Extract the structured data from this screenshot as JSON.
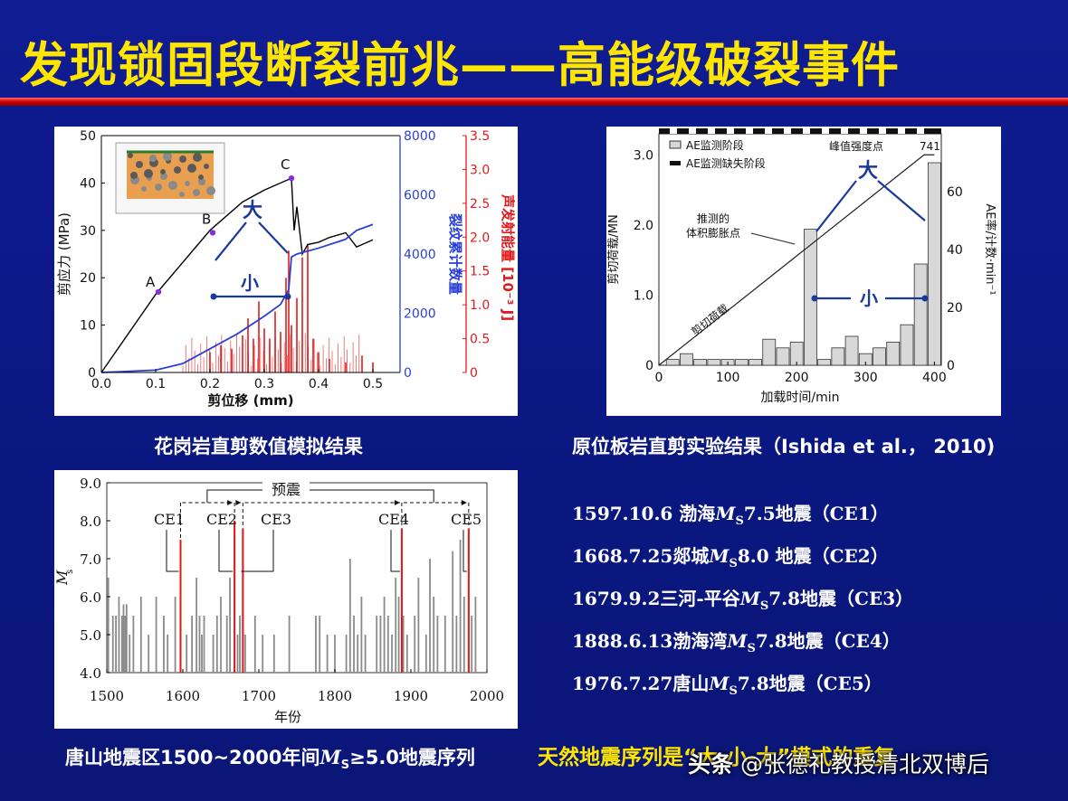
{
  "slide_title": "发现锁固段断裂前兆——高能级破裂事件",
  "panel1": {
    "caption": "花岗岩直剪数值模拟结果",
    "xlabel": "剪位移 (mm)",
    "ylabel_left": "剪应力 (MPa)",
    "ylabel_mid": "裂纹累计数量",
    "ylabel_right": "声发射能量 [10⁻³ J]",
    "x_ticks": [
      "0.0",
      "0.1",
      "0.2",
      "0.3",
      "0.4",
      "0.5"
    ],
    "left_ticks": [
      "0",
      "10",
      "20",
      "30",
      "40",
      "50"
    ],
    "mid_ticks": [
      "0",
      "2000",
      "4000",
      "6000",
      "8000"
    ],
    "right_ticks": [
      "0",
      "0.5",
      "1.0",
      "1.5",
      "2.0",
      "2.5",
      "3.0",
      "3.5"
    ],
    "point_labels": [
      "A",
      "B",
      "C"
    ],
    "big_label": "大",
    "small_label": "小",
    "colors": {
      "stress": "#000000",
      "cracks": "#2a3fd8",
      "energy": "#e11a1a",
      "points": "#8a2be2"
    }
  },
  "panel2": {
    "caption": "原位板岩直剪实验结果（Ishida et al.， 2010)",
    "xlabel": "加载时间/min",
    "ylabel_left": "剪切荷载/MN",
    "ylabel_right": "AE率/计数·min⁻¹",
    "x_ticks": [
      "0",
      "100",
      "200",
      "300",
      "400"
    ],
    "left_ticks": [
      "0",
      "1.0",
      "2.0",
      "3.0"
    ],
    "right_ticks": [
      "0",
      "20",
      "40",
      "60"
    ],
    "legend": [
      "AE监测阶段",
      "AE监测缺失阶段"
    ],
    "peak_label": "峰值强度点",
    "peak_value": "741",
    "dilatancy_label": [
      "推测的",
      "体积膨胀点"
    ],
    "load_line_label": "剪切荷载",
    "big_label": "大",
    "small_label": "小"
  },
  "panel3": {
    "caption_pre": "唐山地震区1500~2000年间",
    "caption_m": "M",
    "caption_sub": "S",
    "caption_post": "≥5.0地震序列",
    "xlabel": "年份",
    "ylabel": "M",
    "ylabel_sub": "s",
    "x_ticks": [
      "1500",
      "1600",
      "1700",
      "1800",
      "1900",
      "2000"
    ],
    "y_ticks": [
      "4.0",
      "5.0",
      "6.0",
      "7.0",
      "8.0",
      "9.0"
    ],
    "foreshock_label": "预震",
    "events": [
      "CE1",
      "CE2",
      "CE3",
      "CE4",
      "CE5"
    ]
  },
  "events_list": [
    {
      "pre": "1597.10.6 渤海",
      "m": "M",
      "sub": "S",
      "post": "7.5地震（CE1）"
    },
    {
      "pre": "1668.7.25郯城",
      "m": "M",
      "sub": "S",
      "post": "8.0 地震（CE2）"
    },
    {
      "pre": "1679.9.2三河-平谷",
      "m": "M",
      "sub": "S",
      "post": "7.8地震（CE3）"
    },
    {
      "pre": "1888.6.13渤海湾",
      "m": "M",
      "sub": "S",
      "post": "7.8地震（CE4）"
    },
    {
      "pre": "1976.7.27唐山",
      "m": "M",
      "sub": "S",
      "post": "7.8地震（CE5）"
    }
  ],
  "conclusion": "天然地震序列是“大-小-大”模式的重复",
  "watermark": {
    "brand": "头条",
    "author": "@张德礼教授清北双博后"
  },
  "chart_data": [
    {
      "type": "line",
      "title": "",
      "xlabel": "剪位移 (mm)",
      "ylabel": "剪应力 (MPa)",
      "xlim": [
        0,
        0.55
      ],
      "ylim": [
        0,
        50
      ],
      "series": [
        {
          "name": "剪应力",
          "axis": "left",
          "x": [
            0,
            0.1,
            0.2,
            0.26,
            0.3,
            0.35,
            0.355,
            0.36,
            0.37,
            0.38,
            0.4,
            0.42,
            0.45,
            0.47,
            0.5
          ],
          "y": [
            0,
            16.5,
            30,
            36,
            38.5,
            41,
            30,
            35,
            25,
            27,
            27.5,
            28.5,
            29.5,
            26.5,
            28
          ]
        },
        {
          "name": "裂纹累计数量",
          "axis": "mid",
          "ylim": [
            0,
            8000
          ],
          "x": [
            0,
            0.1,
            0.15,
            0.2,
            0.25,
            0.3,
            0.33,
            0.345,
            0.35,
            0.36,
            0.4,
            0.45,
            0.47,
            0.5
          ],
          "y": [
            0,
            80,
            300,
            800,
            1300,
            1900,
            2300,
            2800,
            3900,
            4000,
            4200,
            4500,
            4800,
            5000
          ]
        },
        {
          "name": "声发射能量",
          "axis": "right",
          "type": "bar",
          "ylim": [
            0,
            3.5
          ],
          "x": [
            0.2,
            0.22,
            0.24,
            0.26,
            0.27,
            0.28,
            0.29,
            0.3,
            0.31,
            0.32,
            0.33,
            0.34,
            0.345,
            0.35,
            0.36,
            0.37,
            0.38,
            0.39,
            0.4,
            0.42,
            0.45,
            0.48,
            0.5
          ],
          "y": [
            0.3,
            0.4,
            0.35,
            0.55,
            0.8,
            0.5,
            1.05,
            0.65,
            0.5,
            0.9,
            0.6,
            1.4,
            1.8,
            0.7,
            1.1,
            1.7,
            1.9,
            0.5,
            0.3,
            0.2,
            0.15,
            0.25,
            0.15
          ]
        }
      ],
      "point_marks": [
        {
          "label": "A",
          "x": 0.105,
          "y": 17
        },
        {
          "label": "B",
          "x": 0.205,
          "y": 29.5
        },
        {
          "label": "C",
          "x": 0.35,
          "y": 41
        }
      ]
    },
    {
      "type": "bar",
      "title": "",
      "xlabel": "加载时间/min",
      "ylabel": "AE率/计数·min⁻¹",
      "xlim": [
        0,
        410
      ],
      "ylim": [
        0,
        80
      ],
      "x": [
        20,
        40,
        60,
        80,
        100,
        120,
        140,
        160,
        180,
        200,
        220,
        240,
        260,
        280,
        300,
        320,
        340,
        360,
        380,
        400
      ],
      "values": [
        2,
        4,
        2,
        2,
        2,
        2,
        2,
        9,
        6,
        8,
        47,
        2,
        6,
        10,
        4,
        6,
        8,
        14,
        35,
        70
      ],
      "load_line": {
        "x": [
          0,
          385,
          400
        ],
        "y": [
          0,
          3.0,
          3.0
        ],
        "ylim": [
          0,
          3.3
        ]
      }
    },
    {
      "type": "bar",
      "title": "",
      "xlabel": "年份",
      "ylabel": "Ms",
      "xlim": [
        1500,
        2000
      ],
      "ylim": [
        4.0,
        9.0
      ],
      "x": [
        1502,
        1508,
        1512,
        1516,
        1520,
        1522,
        1524,
        1526,
        1530,
        1535,
        1545,
        1555,
        1565,
        1575,
        1580,
        1590,
        1597,
        1605,
        1612,
        1618,
        1622,
        1625,
        1628,
        1640,
        1645,
        1650,
        1658,
        1662,
        1668,
        1672,
        1675,
        1679,
        1682,
        1695,
        1705,
        1720,
        1740,
        1775,
        1780,
        1790,
        1800,
        1815,
        1820,
        1825,
        1830,
        1835,
        1840,
        1855,
        1860,
        1865,
        1870,
        1875,
        1880,
        1884,
        1888,
        1890,
        1895,
        1905,
        1910,
        1920,
        1925,
        1930,
        1935,
        1945,
        1955,
        1960,
        1965,
        1970,
        1976,
        1980,
        1985
      ],
      "values": [
        6.5,
        5.5,
        5.5,
        6.0,
        5.5,
        5.8,
        5.5,
        5.8,
        5.0,
        5.5,
        6.0,
        5.0,
        6.0,
        5.5,
        5.0,
        6.0,
        7.5,
        5.0,
        5.5,
        6.5,
        5.5,
        5.0,
        5.5,
        5.0,
        5.5,
        6.0,
        5.5,
        6.5,
        8.0,
        5.0,
        5.5,
        7.8,
        5.0,
        5.5,
        5.0,
        5.0,
        5.5,
        5.5,
        5.5,
        5.0,
        5.0,
        5.0,
        7.0,
        5.5,
        5.0,
        6.0,
        5.0,
        5.5,
        5.5,
        6.0,
        5.5,
        5.0,
        6.5,
        6.0,
        7.8,
        5.5,
        5.0,
        5.5,
        6.5,
        5.0,
        7.0,
        6.0,
        5.5,
        5.5,
        7.2,
        5.5,
        7.5,
        6.0,
        7.8,
        5.5,
        6.0
      ],
      "highlight_events": [
        {
          "label": "CE1",
          "x": 1597,
          "y": 7.5
        },
        {
          "label": "CE2",
          "x": 1668,
          "y": 8.0
        },
        {
          "label": "CE3",
          "x": 1679,
          "y": 7.8
        },
        {
          "label": "CE4",
          "x": 1888,
          "y": 7.8
        },
        {
          "label": "CE5",
          "x": 1976,
          "y": 7.8
        }
      ]
    }
  ]
}
